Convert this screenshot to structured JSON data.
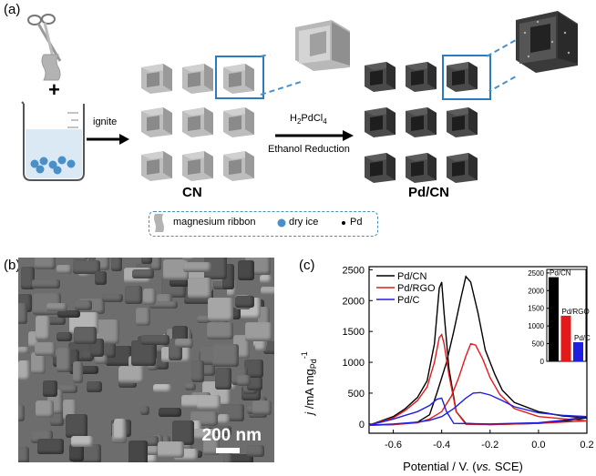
{
  "panel_a": {
    "label": "(a)",
    "plus": "+",
    "ignite": "ignite",
    "reagent_main": "H",
    "reagent_sub1": "2",
    "reagent_mid": "PdCl",
    "reagent_sub2": "4",
    "ethanol": "Ethanol Reduction",
    "cn_label": "CN",
    "pdcn_label": "Pd/CN",
    "legend": {
      "ribbon": "magnesium ribbon",
      "ice": "dry ice",
      "pd": "Pd"
    }
  },
  "panel_b": {
    "label": "(b)",
    "scale": "200 nm"
  },
  "panel_c": {
    "label": "(c)"
  },
  "colors": {
    "pd_cn": "#000000",
    "pd_rgo": "#e31a1c",
    "pd_c": "#1f1fe0",
    "accent_blue": "#2b7bbf"
  },
  "chart_data": [
    {
      "type": "line",
      "ylabel_parts": [
        "j",
        " /mA mg",
        "Pd",
        "-1"
      ],
      "xlabel_parts": [
        "Potential / V. (",
        "vs.",
        " SCE)"
      ],
      "xlim": [
        -0.7,
        0.2
      ],
      "ylim": [
        -150,
        2550
      ],
      "xticks": [
        -0.6,
        -0.4,
        -0.2,
        0.0,
        0.2
      ],
      "xtick_labels": [
        "-0.6",
        "-0.4",
        "-0.2",
        "0.0",
        "0.2"
      ],
      "yticks": [
        0,
        500,
        1000,
        1500,
        2000,
        2500
      ],
      "ytick_labels": [
        "0",
        "500",
        "1000",
        "1500",
        "2000",
        "2500"
      ],
      "legend_position": "top-left",
      "series": [
        {
          "name": "Pd/CN",
          "color": "#000000",
          "forward": [
            [
              -0.7,
              -20
            ],
            [
              -0.6,
              -10
            ],
            [
              -0.5,
              30
            ],
            [
              -0.45,
              150
            ],
            [
              -0.42,
              500
            ],
            [
              -0.38,
              1000
            ],
            [
              -0.35,
              1500
            ],
            [
              -0.32,
              2050
            ],
            [
              -0.3,
              2390
            ],
            [
              -0.28,
              2300
            ],
            [
              -0.25,
              1800
            ],
            [
              -0.22,
              1200
            ],
            [
              -0.18,
              800
            ],
            [
              -0.15,
              550
            ],
            [
              -0.1,
              350
            ],
            [
              0.0,
              200
            ],
            [
              0.1,
              130
            ],
            [
              0.2,
              100
            ]
          ],
          "backward": [
            [
              0.2,
              100
            ],
            [
              0.1,
              40
            ],
            [
              0.0,
              10
            ],
            [
              -0.1,
              0
            ],
            [
              -0.2,
              -10
            ],
            [
              -0.3,
              10
            ],
            [
              -0.34,
              200
            ],
            [
              -0.37,
              900
            ],
            [
              -0.39,
              1800
            ],
            [
              -0.4,
              2300
            ],
            [
              -0.41,
              2200
            ],
            [
              -0.43,
              1300
            ],
            [
              -0.46,
              700
            ],
            [
              -0.5,
              430
            ],
            [
              -0.55,
              250
            ],
            [
              -0.6,
              120
            ],
            [
              -0.7,
              -20
            ]
          ]
        },
        {
          "name": "Pd/RGO",
          "color": "#e31a1c",
          "forward": [
            [
              -0.7,
              -20
            ],
            [
              -0.6,
              -10
            ],
            [
              -0.5,
              20
            ],
            [
              -0.45,
              80
            ],
            [
              -0.4,
              200
            ],
            [
              -0.36,
              450
            ],
            [
              -0.33,
              750
            ],
            [
              -0.3,
              1100
            ],
            [
              -0.28,
              1300
            ],
            [
              -0.26,
              1280
            ],
            [
              -0.23,
              1050
            ],
            [
              -0.2,
              750
            ],
            [
              -0.16,
              480
            ],
            [
              -0.1,
              250
            ],
            [
              0.0,
              120
            ],
            [
              0.2,
              50
            ]
          ],
          "backward": [
            [
              0.2,
              50
            ],
            [
              0.0,
              10
            ],
            [
              -0.2,
              -10
            ],
            [
              -0.3,
              -5
            ],
            [
              -0.34,
              200
            ],
            [
              -0.37,
              800
            ],
            [
              -0.39,
              1300
            ],
            [
              -0.4,
              1450
            ],
            [
              -0.41,
              1400
            ],
            [
              -0.43,
              1000
            ],
            [
              -0.46,
              600
            ],
            [
              -0.5,
              380
            ],
            [
              -0.55,
              220
            ],
            [
              -0.6,
              100
            ],
            [
              -0.7,
              -20
            ]
          ]
        },
        {
          "name": "Pd/C",
          "color": "#1f1fe0",
          "forward": [
            [
              -0.7,
              -20
            ],
            [
              -0.6,
              0
            ],
            [
              -0.5,
              30
            ],
            [
              -0.45,
              60
            ],
            [
              -0.4,
              120
            ],
            [
              -0.35,
              250
            ],
            [
              -0.3,
              420
            ],
            [
              -0.27,
              500
            ],
            [
              -0.24,
              510
            ],
            [
              -0.2,
              470
            ],
            [
              -0.15,
              380
            ],
            [
              -0.1,
              280
            ],
            [
              0.0,
              180
            ],
            [
              0.1,
              140
            ],
            [
              0.2,
              120
            ]
          ],
          "backward": [
            [
              0.2,
              120
            ],
            [
              0.1,
              60
            ],
            [
              0.0,
              20
            ],
            [
              -0.2,
              0
            ],
            [
              -0.35,
              10
            ],
            [
              -0.38,
              200
            ],
            [
              -0.4,
              420
            ],
            [
              -0.42,
              400
            ],
            [
              -0.45,
              300
            ],
            [
              -0.5,
              200
            ],
            [
              -0.55,
              140
            ],
            [
              -0.6,
              80
            ],
            [
              -0.7,
              -20
            ]
          ]
        }
      ]
    },
    {
      "type": "bar",
      "categories": [
        "Pd/CN",
        "Pd/RGO",
        "Pd/C"
      ],
      "values": [
        2380,
        1290,
        540
      ],
      "colors": [
        "#000000",
        "#e31a1c",
        "#1f1fe0"
      ],
      "ylim": [
        0,
        2600
      ],
      "yticks": [
        0,
        500,
        1000,
        1500,
        2000,
        2500
      ],
      "ytick_labels": [
        "0",
        "500",
        "1000",
        "1500",
        "2000",
        "2500"
      ]
    }
  ]
}
